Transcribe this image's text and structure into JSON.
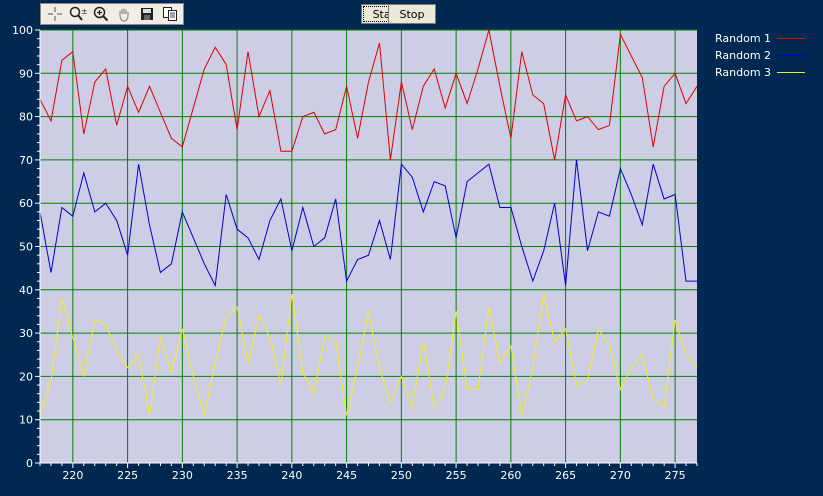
{
  "toolbar": {
    "tools": [
      {
        "icon": "crosshair-icon"
      },
      {
        "icon": "zoom-axis-icon"
      },
      {
        "icon": "zoom-in-icon"
      },
      {
        "icon": "pan-hand-icon"
      },
      {
        "icon": "save-icon"
      },
      {
        "icon": "copy-icon"
      }
    ],
    "start_label": "Start",
    "stop_label": "Stop"
  },
  "colors": {
    "background": "#002850",
    "plot_area": "#cdcde6",
    "grid": "#008000",
    "series": [
      "#e00000",
      "#0000d0",
      "#f0f020"
    ]
  },
  "chart_data": {
    "type": "line",
    "title": "",
    "xlabel": "",
    "ylabel": "",
    "xlim": [
      217,
      277
    ],
    "ylim": [
      0,
      100
    ],
    "xticks": [
      220,
      225,
      230,
      235,
      240,
      245,
      250,
      255,
      260,
      265,
      270,
      275
    ],
    "yticks": [
      0,
      10,
      20,
      30,
      40,
      50,
      60,
      70,
      80,
      90,
      100
    ],
    "grid": true,
    "legend": "right",
    "x_start": 217,
    "x_step": 1,
    "series": [
      {
        "name": "Random 1",
        "values": [
          84,
          79,
          93,
          95,
          76,
          88,
          91,
          78,
          87,
          81,
          87,
          81,
          75,
          73,
          82,
          91,
          96,
          92,
          77,
          95,
          80,
          86,
          72,
          72,
          80,
          81,
          76,
          77,
          87,
          75,
          88,
          97,
          70,
          88,
          77,
          87,
          91,
          82,
          90,
          83,
          91,
          100,
          87,
          75,
          95,
          85,
          83,
          70,
          85,
          79,
          80,
          77,
          78,
          99,
          94,
          89,
          73,
          87,
          90,
          83,
          87
        ]
      },
      {
        "name": "Random 2",
        "values": [
          58,
          44,
          59,
          57,
          67,
          58,
          60,
          56,
          48,
          69,
          55,
          44,
          46,
          58,
          52,
          46,
          41,
          62,
          54,
          52,
          47,
          56,
          61,
          49,
          59,
          50,
          52,
          61,
          42,
          47,
          48,
          56,
          47,
          69,
          66,
          58,
          65,
          64,
          52,
          65,
          67,
          69,
          59,
          59,
          50,
          42,
          49,
          60,
          41,
          70,
          49,
          58,
          57,
          68,
          62,
          55,
          69,
          61,
          62,
          42,
          42
        ]
      },
      {
        "name": "Random 3",
        "values": [
          11,
          19,
          38,
          29,
          20,
          33,
          32,
          26,
          22,
          25,
          11,
          29,
          21,
          31,
          20,
          11,
          23,
          34,
          36,
          23,
          34,
          29,
          18,
          39,
          21,
          16,
          29,
          28,
          11,
          22,
          35,
          22,
          14,
          20,
          13,
          28,
          13,
          17,
          35,
          17,
          17,
          36,
          23,
          27,
          11,
          22,
          39,
          28,
          31,
          18,
          19,
          31,
          27,
          17,
          22,
          25,
          15,
          13,
          33,
          25,
          22
        ]
      }
    ]
  }
}
